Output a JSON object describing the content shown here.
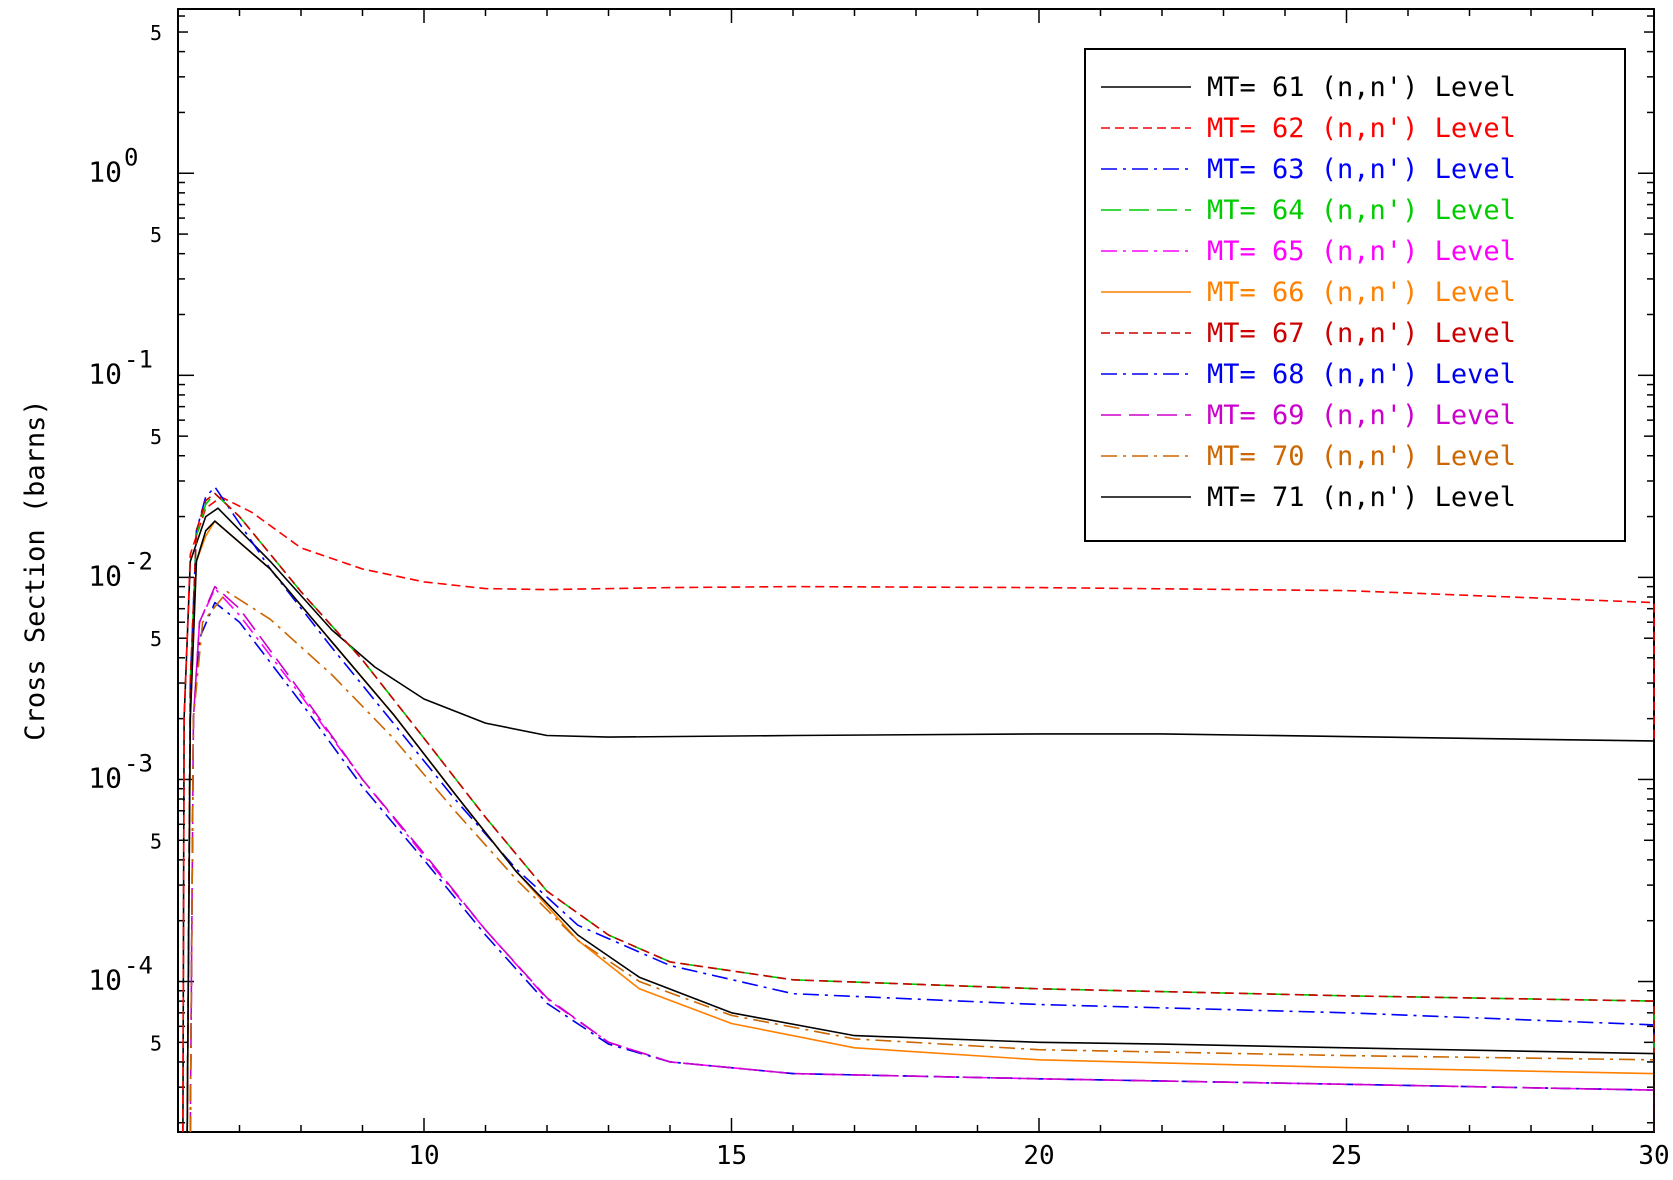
{
  "chart_data": {
    "type": "line",
    "title": "",
    "xlabel": "",
    "ylabel": "Cross Section (barns)",
    "xscale": "linear",
    "yscale": "log",
    "xlim": [
      6,
      30
    ],
    "ylim": [
      1.8e-05,
      6.5
    ],
    "grid": false,
    "legend_position": "top-right",
    "x_ticks": [
      {
        "value": 10,
        "label": "10"
      },
      {
        "value": 15,
        "label": "15"
      },
      {
        "value": 20,
        "label": "20"
      },
      {
        "value": 25,
        "label": "25"
      },
      {
        "value": 30,
        "label": "30"
      }
    ],
    "y_major_ticks": [
      {
        "value": 1,
        "base": "10",
        "exp": "0"
      },
      {
        "value": 0.1,
        "base": "10",
        "exp": "-1"
      },
      {
        "value": 0.01,
        "base": "10",
        "exp": "-2"
      },
      {
        "value": 0.001,
        "base": "10",
        "exp": "-3"
      },
      {
        "value": 0.0001,
        "base": "10",
        "exp": "-4"
      }
    ],
    "y_minor_labels": [
      {
        "value": 5,
        "label": "5"
      },
      {
        "value": 0.5,
        "label": "5"
      },
      {
        "value": 0.05,
        "label": "5"
      },
      {
        "value": 0.005,
        "label": "5"
      },
      {
        "value": 0.0005,
        "label": "5"
      },
      {
        "value": 5e-05,
        "label": "5"
      }
    ],
    "series": [
      {
        "name": "MT= 61 (n,n') Level",
        "color": "#000000",
        "dash": "solid",
        "points": [
          [
            6.08,
            1.8e-05
          ],
          [
            6.1,
            0.002
          ],
          [
            6.2,
            0.012
          ],
          [
            6.45,
            0.02
          ],
          [
            6.65,
            0.022
          ],
          [
            7.5,
            0.012
          ],
          [
            8.5,
            0.0055
          ],
          [
            9.2,
            0.0036
          ],
          [
            10,
            0.0025
          ],
          [
            11,
            0.0019
          ],
          [
            12,
            0.00165
          ],
          [
            13,
            0.00162
          ],
          [
            16,
            0.00165
          ],
          [
            20,
            0.00168
          ],
          [
            22,
            0.00168
          ],
          [
            25,
            0.00163
          ],
          [
            30,
            0.00155
          ],
          [
            30,
            1.8e-05
          ]
        ]
      },
      {
        "name": "MT= 62 (n,n') Level",
        "color": "#ff0000",
        "dash": "dashed",
        "points": [
          [
            6.08,
            1.8e-05
          ],
          [
            6.1,
            0.002
          ],
          [
            6.2,
            0.013
          ],
          [
            6.45,
            0.022
          ],
          [
            6.7,
            0.025
          ],
          [
            7.2,
            0.021
          ],
          [
            8,
            0.014
          ],
          [
            9,
            0.011
          ],
          [
            10,
            0.0095
          ],
          [
            11,
            0.0088
          ],
          [
            12,
            0.0087
          ],
          [
            14,
            0.0089
          ],
          [
            16,
            0.009
          ],
          [
            20,
            0.0089
          ],
          [
            25,
            0.0086
          ],
          [
            30,
            0.0075
          ],
          [
            30,
            0.0015
          ]
        ]
      },
      {
        "name": "MT= 63 (n,n') Level",
        "color": "#0000ff",
        "dash": "dashdot",
        "points": [
          [
            6.15,
            1.8e-05
          ],
          [
            6.2,
            0.003
          ],
          [
            6.3,
            0.017
          ],
          [
            6.45,
            0.025
          ],
          [
            6.6,
            0.028
          ],
          [
            7.5,
            0.011
          ],
          [
            8.5,
            0.0045
          ],
          [
            9.5,
            0.0019
          ],
          [
            10.5,
            0.0008
          ],
          [
            11.5,
            0.00036
          ],
          [
            12.5,
            0.00019
          ],
          [
            14,
            0.00012
          ],
          [
            16,
            8.7e-05
          ],
          [
            20,
            7.7e-05
          ],
          [
            25,
            7e-05
          ],
          [
            30,
            6.1e-05
          ],
          [
            30,
            1.8e-05
          ]
        ]
      },
      {
        "name": "MT= 64 (n,n') Level",
        "color": "#00cc00",
        "dash": "longdash",
        "points": [
          [
            6.15,
            1.8e-05
          ],
          [
            6.2,
            0.003
          ],
          [
            6.3,
            0.016
          ],
          [
            6.45,
            0.023
          ],
          [
            6.6,
            0.026
          ],
          [
            7,
            0.02
          ],
          [
            8,
            0.0085
          ],
          [
            9,
            0.0039
          ],
          [
            10,
            0.0016
          ],
          [
            11,
            0.00065
          ],
          [
            12,
            0.00028
          ],
          [
            13,
            0.00017
          ],
          [
            14,
            0.000125
          ],
          [
            16,
            0.000102
          ],
          [
            20,
            9.2e-05
          ],
          [
            25,
            8.5e-05
          ],
          [
            30,
            8e-05
          ],
          [
            30,
            1.8e-05
          ]
        ]
      },
      {
        "name": "MT= 65 (n,n') Level",
        "color": "#ff00ff",
        "dash": "dashdot",
        "points": [
          [
            6.2,
            1.8e-05
          ],
          [
            6.25,
            0.002
          ],
          [
            6.35,
            0.006
          ],
          [
            6.6,
            0.0088
          ],
          [
            7,
            0.0065
          ],
          [
            8,
            0.0026
          ],
          [
            9,
            0.001
          ],
          [
            10,
            0.00042
          ],
          [
            11,
            0.00018
          ],
          [
            12,
            8.2e-05
          ],
          [
            13,
            5e-05
          ],
          [
            14,
            4e-05
          ],
          [
            16,
            3.5e-05
          ],
          [
            20,
            3.3e-05
          ],
          [
            25,
            3.1e-05
          ],
          [
            30,
            2.9e-05
          ],
          [
            30,
            1.8e-05
          ]
        ]
      },
      {
        "name": "MT= 66 (n,n') Level",
        "color": "#ff8000",
        "dash": "solid",
        "points": [
          [
            6.15,
            1.8e-05
          ],
          [
            6.2,
            0.002
          ],
          [
            6.3,
            0.012
          ],
          [
            6.45,
            0.016
          ],
          [
            6.6,
            0.019
          ],
          [
            7.5,
            0.011
          ],
          [
            8.5,
            0.0048
          ],
          [
            9.5,
            0.0021
          ],
          [
            10.5,
            0.00085
          ],
          [
            11.5,
            0.00035
          ],
          [
            12.5,
            0.00016
          ],
          [
            13.5,
            9.2e-05
          ],
          [
            15,
            6.2e-05
          ],
          [
            17,
            4.7e-05
          ],
          [
            20,
            4.1e-05
          ],
          [
            25,
            3.75e-05
          ],
          [
            30,
            3.5e-05
          ],
          [
            30,
            1.8e-05
          ]
        ]
      },
      {
        "name": "MT= 67 (n,n') Level",
        "color": "#cc0000",
        "dash": "dashed",
        "points": [
          [
            6.15,
            1.8e-05
          ],
          [
            6.2,
            0.003
          ],
          [
            6.3,
            0.017
          ],
          [
            6.45,
            0.024
          ],
          [
            6.6,
            0.026
          ],
          [
            7,
            0.02
          ],
          [
            8,
            0.0085
          ],
          [
            9,
            0.0039
          ],
          [
            10,
            0.0016
          ],
          [
            11,
            0.00065
          ],
          [
            12,
            0.00028
          ],
          [
            13,
            0.00017
          ],
          [
            14,
            0.000125
          ],
          [
            16,
            0.000102
          ],
          [
            20,
            9.2e-05
          ],
          [
            25,
            8.5e-05
          ],
          [
            30,
            8e-05
          ],
          [
            30,
            1.8e-05
          ]
        ]
      },
      {
        "name": "MT= 68 (n,n') Level",
        "color": "#0000ee",
        "dash": "dashdot",
        "points": [
          [
            6.2,
            1.8e-05
          ],
          [
            6.25,
            0.002
          ],
          [
            6.35,
            0.005
          ],
          [
            6.6,
            0.0075
          ],
          [
            7,
            0.006
          ],
          [
            8,
            0.0024
          ],
          [
            9,
            0.00092
          ],
          [
            10,
            0.0004
          ],
          [
            11,
            0.00017
          ],
          [
            12,
            7.8e-05
          ],
          [
            13,
            4.9e-05
          ],
          [
            14,
            4e-05
          ],
          [
            16,
            3.5e-05
          ],
          [
            20,
            3.3e-05
          ],
          [
            25,
            3.1e-05
          ],
          [
            30,
            2.9e-05
          ],
          [
            30,
            1.8e-05
          ]
        ]
      },
      {
        "name": "MT= 69 (n,n') Level",
        "color": "#cc00cc",
        "dash": "longdash",
        "points": [
          [
            6.2,
            1.8e-05
          ],
          [
            6.25,
            0.002
          ],
          [
            6.35,
            0.006
          ],
          [
            6.6,
            0.009
          ],
          [
            7,
            0.007
          ],
          [
            8,
            0.0027
          ],
          [
            9,
            0.001
          ],
          [
            10,
            0.00043
          ],
          [
            11,
            0.00018
          ],
          [
            12,
            8.3e-05
          ],
          [
            13,
            5e-05
          ],
          [
            14,
            4e-05
          ],
          [
            16,
            3.5e-05
          ],
          [
            20,
            3.3e-05
          ],
          [
            25,
            3.1e-05
          ],
          [
            30,
            2.9e-05
          ],
          [
            30,
            1.8e-05
          ]
        ]
      },
      {
        "name": "MT= 70 (n,n') Level",
        "color": "#cc6600",
        "dash": "dashdot",
        "points": [
          [
            6.2,
            1.8e-05
          ],
          [
            6.25,
            0.002
          ],
          [
            6.4,
            0.006
          ],
          [
            6.8,
            0.0085
          ],
          [
            7.5,
            0.0062
          ],
          [
            8.5,
            0.0033
          ],
          [
            9.5,
            0.0016
          ],
          [
            10.5,
            0.0007
          ],
          [
            11.5,
            0.00032
          ],
          [
            12.5,
            0.00016
          ],
          [
            13.5,
            0.0001
          ],
          [
            15,
            6.8e-05
          ],
          [
            17,
            5.2e-05
          ],
          [
            20,
            4.6e-05
          ],
          [
            25,
            4.3e-05
          ],
          [
            30,
            4.1e-05
          ],
          [
            30,
            1.8e-05
          ]
        ]
      },
      {
        "name": "MT= 71 (n,n') Level",
        "color": "#000000",
        "dash": "solid",
        "points": [
          [
            6.15,
            1.8e-05
          ],
          [
            6.2,
            0.002
          ],
          [
            6.3,
            0.012
          ],
          [
            6.45,
            0.017
          ],
          [
            6.6,
            0.019
          ],
          [
            7.5,
            0.011
          ],
          [
            8.5,
            0.0048
          ],
          [
            9.5,
            0.0021
          ],
          [
            10.5,
            0.00085
          ],
          [
            11.5,
            0.00035
          ],
          [
            12.5,
            0.00017
          ],
          [
            13.5,
            0.000105
          ],
          [
            15,
            7e-05
          ],
          [
            17,
            5.4e-05
          ],
          [
            20,
            5e-05
          ],
          [
            22,
            4.9e-05
          ],
          [
            25,
            4.7e-05
          ],
          [
            30,
            4.4e-05
          ],
          [
            30,
            1.8e-05
          ]
        ]
      }
    ]
  }
}
